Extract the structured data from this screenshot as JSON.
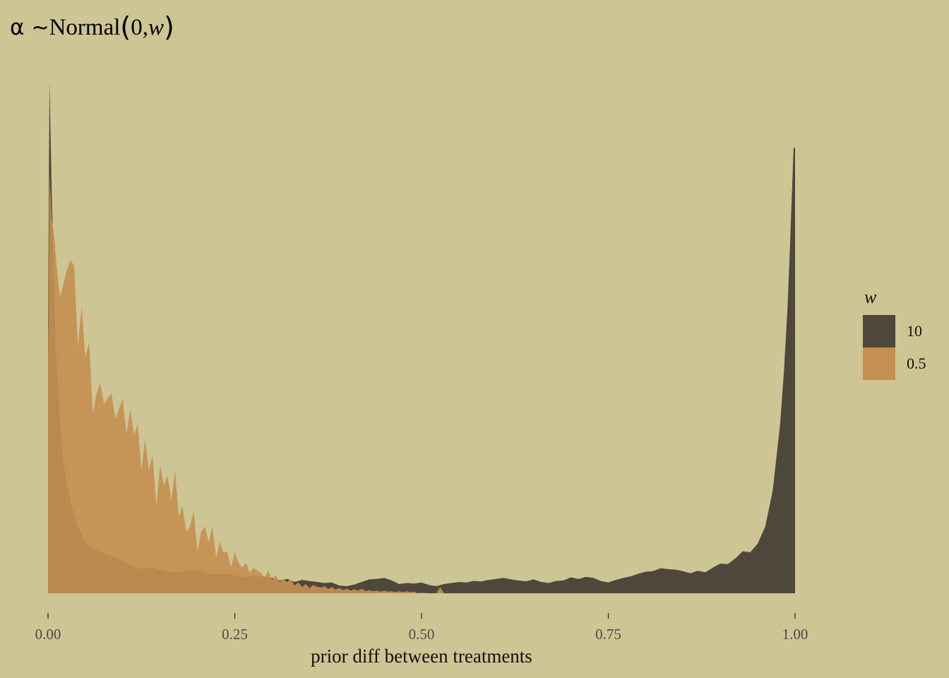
{
  "title": {
    "alpha": "α",
    "tilde": "~",
    "dist": "Normal",
    "lparen": "(",
    "arg0": "0, ",
    "arg1": "w",
    "rparen": ")"
  },
  "legend": {
    "title": "w",
    "items": [
      {
        "label": "10",
        "color": "#4f473c"
      },
      {
        "label": "0.5",
        "color": "#c48f50"
      }
    ]
  },
  "chart_data": {
    "type": "area",
    "title": "α ~Normal(0, w)",
    "xlabel": "prior diff between treatments",
    "ylabel": "",
    "xlim": [
      0,
      1
    ],
    "ylim": [
      0,
      1
    ],
    "x_ticks": [
      {
        "value": 0,
        "label": "0.00"
      },
      {
        "value": 0.25,
        "label": "0.25"
      },
      {
        "value": 0.5,
        "label": "0.50"
      },
      {
        "value": 0.75,
        "label": "0.75"
      },
      {
        "value": 1,
        "label": "1.00"
      }
    ],
    "grid": false,
    "legend_position": "right",
    "y_axis_hidden": true,
    "series": [
      {
        "name": "10",
        "color": "#4f473c",
        "opacity": 1.0,
        "x": [
          0,
          0.002,
          0.005,
          0.01,
          0.015,
          0.02,
          0.03,
          0.04,
          0.05,
          0.06,
          0.08,
          0.1,
          0.12,
          0.14,
          0.16,
          0.18,
          0.2,
          0.22,
          0.24,
          0.26,
          0.28,
          0.3,
          0.31,
          0.32,
          0.33,
          0.34,
          0.35,
          0.36,
          0.37,
          0.38,
          0.39,
          0.4,
          0.41,
          0.42,
          0.43,
          0.44,
          0.45,
          0.46,
          0.47,
          0.48,
          0.49,
          0.5,
          0.51,
          0.52,
          0.53,
          0.54,
          0.55,
          0.56,
          0.57,
          0.58,
          0.59,
          0.6,
          0.61,
          0.62,
          0.63,
          0.64,
          0.65,
          0.66,
          0.67,
          0.68,
          0.69,
          0.7,
          0.71,
          0.72,
          0.73,
          0.74,
          0.75,
          0.76,
          0.77,
          0.78,
          0.79,
          0.8,
          0.81,
          0.82,
          0.83,
          0.84,
          0.85,
          0.86,
          0.87,
          0.88,
          0.89,
          0.9,
          0.91,
          0.92,
          0.93,
          0.94,
          0.95,
          0.96,
          0.97,
          0.98,
          0.985,
          0.99,
          0.993,
          0.996,
          0.998,
          1.0
        ],
        "y": [
          0.52,
          1.0,
          0.78,
          0.5,
          0.36,
          0.26,
          0.18,
          0.13,
          0.1,
          0.087,
          0.075,
          0.063,
          0.048,
          0.05,
          0.042,
          0.043,
          0.044,
          0.036,
          0.038,
          0.032,
          0.034,
          0.03,
          0.025,
          0.028,
          0.022,
          0.026,
          0.024,
          0.022,
          0.02,
          0.021,
          0.015,
          0.014,
          0.017,
          0.022,
          0.027,
          0.028,
          0.03,
          0.025,
          0.018,
          0.02,
          0.019,
          0.021,
          0.016,
          0.014,
          0.018,
          0.02,
          0.022,
          0.021,
          0.024,
          0.023,
          0.026,
          0.028,
          0.03,
          0.027,
          0.025,
          0.023,
          0.027,
          0.022,
          0.02,
          0.024,
          0.025,
          0.031,
          0.028,
          0.032,
          0.03,
          0.024,
          0.021,
          0.026,
          0.03,
          0.033,
          0.038,
          0.042,
          0.043,
          0.049,
          0.047,
          0.046,
          0.043,
          0.039,
          0.044,
          0.041,
          0.05,
          0.058,
          0.057,
          0.068,
          0.082,
          0.08,
          0.097,
          0.13,
          0.2,
          0.33,
          0.43,
          0.56,
          0.67,
          0.79,
          0.87,
          0.87
        ]
      },
      {
        "name": "0.5",
        "color": "#c48f50",
        "opacity": 0.92,
        "x": [
          0,
          0.002,
          0.005,
          0.008,
          0.012,
          0.016,
          0.02,
          0.025,
          0.03,
          0.035,
          0.04,
          0.045,
          0.05,
          0.055,
          0.06,
          0.065,
          0.07,
          0.075,
          0.08,
          0.085,
          0.09,
          0.095,
          0.1,
          0.105,
          0.11,
          0.115,
          0.12,
          0.125,
          0.13,
          0.135,
          0.14,
          0.145,
          0.15,
          0.155,
          0.16,
          0.165,
          0.17,
          0.175,
          0.18,
          0.185,
          0.19,
          0.195,
          0.2,
          0.205,
          0.21,
          0.215,
          0.22,
          0.225,
          0.23,
          0.235,
          0.24,
          0.245,
          0.25,
          0.255,
          0.26,
          0.265,
          0.27,
          0.275,
          0.28,
          0.285,
          0.29,
          0.295,
          0.3,
          0.305,
          0.31,
          0.315,
          0.32,
          0.325,
          0.33,
          0.335,
          0.34,
          0.345,
          0.35,
          0.355,
          0.36,
          0.365,
          0.37,
          0.375,
          0.38,
          0.385,
          0.39,
          0.395,
          0.4,
          0.405,
          0.41,
          0.415,
          0.42,
          0.425,
          0.43,
          0.435,
          0.44,
          0.445,
          0.45,
          0.455,
          0.46,
          0.465,
          0.47,
          0.475,
          0.48,
          0.485,
          0.49,
          0.495,
          0.5,
          0.51,
          0.52,
          0.525,
          0.53,
          0.535,
          0.54
        ],
        "y": [
          0.45,
          0.82,
          0.73,
          0.7,
          0.63,
          0.58,
          0.6,
          0.63,
          0.65,
          0.64,
          0.48,
          0.56,
          0.46,
          0.49,
          0.35,
          0.39,
          0.41,
          0.37,
          0.38,
          0.39,
          0.34,
          0.36,
          0.38,
          0.31,
          0.36,
          0.31,
          0.33,
          0.24,
          0.3,
          0.24,
          0.27,
          0.17,
          0.25,
          0.21,
          0.23,
          0.18,
          0.24,
          0.15,
          0.17,
          0.12,
          0.13,
          0.16,
          0.08,
          0.12,
          0.13,
          0.1,
          0.13,
          0.07,
          0.1,
          0.08,
          0.08,
          0.05,
          0.08,
          0.06,
          0.05,
          0.06,
          0.04,
          0.05,
          0.045,
          0.04,
          0.03,
          0.045,
          0.026,
          0.035,
          0.022,
          0.028,
          0.022,
          0.027,
          0.015,
          0.021,
          0.012,
          0.018,
          0.01,
          0.016,
          0.013,
          0.011,
          0.014,
          0.008,
          0.012,
          0.007,
          0.01,
          0.006,
          0.009,
          0.005,
          0.008,
          0.005,
          0.009,
          0.004,
          0.006,
          0.004,
          0.005,
          0.003,
          0.005,
          0.003,
          0.004,
          0.002,
          0.004,
          0.002,
          0.004,
          0.002,
          0.003,
          0.0,
          0.001,
          0.0,
          0.0,
          0.012,
          0.0,
          0.0,
          0.0
        ]
      }
    ]
  }
}
